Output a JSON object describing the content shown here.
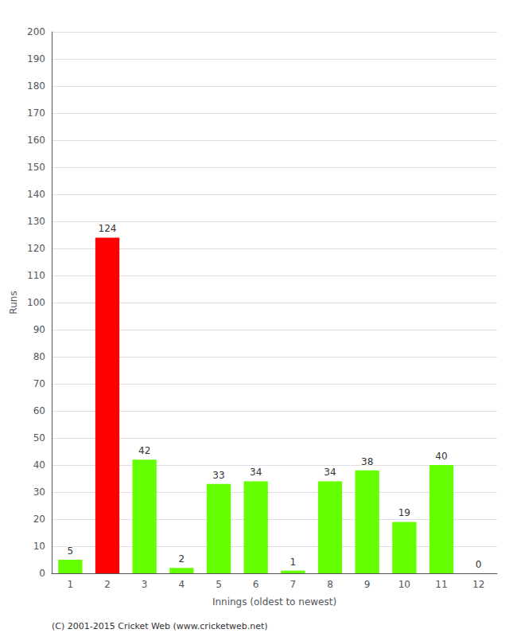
{
  "chart_data": {
    "type": "bar",
    "xlabel": "Innings (oldest to newest)",
    "ylabel": "Runs",
    "categories": [
      1,
      2,
      3,
      4,
      5,
      6,
      7,
      8,
      9,
      10,
      11,
      12
    ],
    "values": [
      5,
      124,
      42,
      2,
      33,
      34,
      1,
      34,
      38,
      19,
      40,
      0
    ],
    "colors": [
      "#66ff00",
      "#ff0000",
      "#66ff00",
      "#66ff00",
      "#66ff00",
      "#66ff00",
      "#66ff00",
      "#66ff00",
      "#66ff00",
      "#66ff00",
      "#66ff00",
      "#66ff00"
    ],
    "ylim": [
      0,
      200
    ],
    "yticks": [
      0,
      10,
      20,
      30,
      40,
      50,
      60,
      70,
      80,
      90,
      100,
      110,
      120,
      130,
      140,
      150,
      160,
      170,
      180,
      190,
      200
    ],
    "grid": true,
    "data_labels": true,
    "annotations": [
      "(C) 2001-2015 Cricket Web (www.cricketweb.net)"
    ]
  }
}
